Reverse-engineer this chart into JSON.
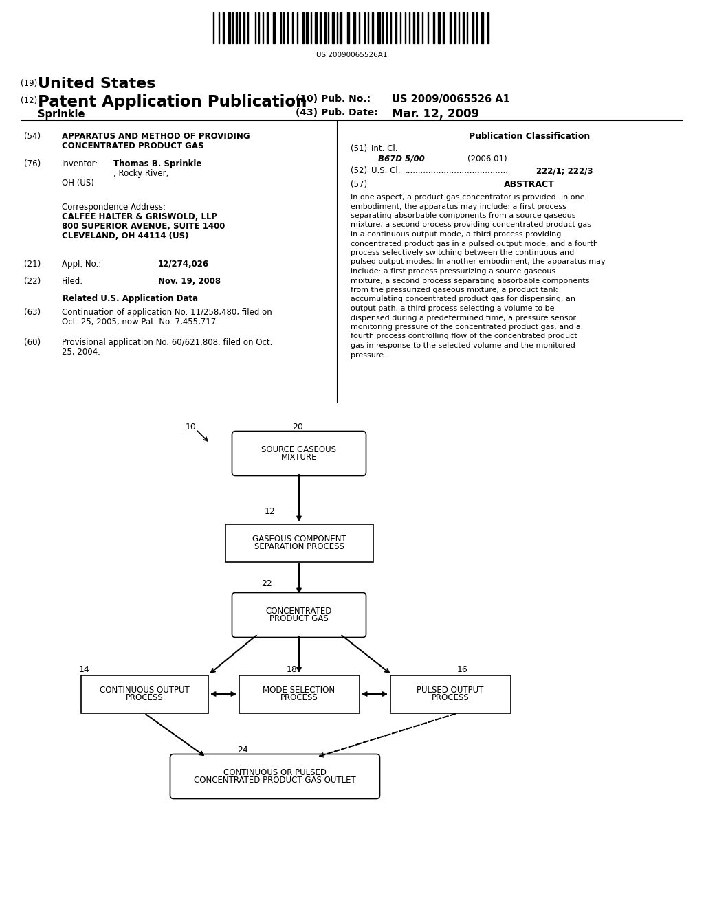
{
  "background_color": "#ffffff",
  "barcode_text": "US 20090065526A1",
  "header": {
    "country_label": "(19)",
    "country": "United States",
    "type_label": "(12)",
    "type": "Patent Application Publication",
    "pub_no_label": "(10) Pub. No.:",
    "pub_no": "US 2009/0065526 A1",
    "date_label": "(43) Pub. Date:",
    "date": "Mar. 12, 2009",
    "inventor_surname": "Sprinkle"
  },
  "left_column": {
    "title_label": "(54)",
    "title_line1": "APPARATUS AND METHOD OF PROVIDING",
    "title_line2": "CONCENTRATED PRODUCT GAS",
    "inventor_label": "(76)",
    "inventor_key": "Inventor:",
    "inventor_value": "Thomas B. Sprinkle, Rocky River,\nOH (US)",
    "corr_header": "Correspondence Address:",
    "corr_line1": "CALFEE HALTER & GRISWOLD, LLP",
    "corr_line2": "800 SUPERIOR AVENUE, SUITE 1400",
    "corr_line3": "CLEVELAND, OH 44114 (US)",
    "appl_label": "(21)",
    "appl_key": "Appl. No.:",
    "appl_value": "12/274,026",
    "filed_label": "(22)",
    "filed_key": "Filed:",
    "filed_value": "Nov. 19, 2008",
    "related_header": "Related U.S. Application Data",
    "cont_label": "(63)",
    "cont_text": "Continuation of application No. 11/258,480, filed on\nOct. 25, 2005, now Pat. No. 7,455,717.",
    "prov_label": "(60)",
    "prov_text": "Provisional application No. 60/621,808, filed on Oct.\n25, 2004."
  },
  "right_column": {
    "pub_class_header": "Publication Classification",
    "int_cl_label": "(51)",
    "int_cl_key": "Int. Cl.",
    "int_cl_code": "B67D 5/00",
    "int_cl_year": "(2006.01)",
    "us_cl_label": "(52)",
    "us_cl_key": "U.S. Cl.",
    "us_cl_dots": "........................................",
    "us_cl_value": "222/1; 222/3",
    "abstract_label": "(57)",
    "abstract_header": "ABSTRACT",
    "abstract_text": "In one aspect, a product gas concentrator is provided. In one embodiment, the apparatus may include: a first process separating absorbable components from a source gaseous mixture, a second process providing concentrated product gas in a continuous output mode, a third process providing concentrated product gas in a pulsed output mode, and a fourth process selectively switching between the continuous and pulsed output modes. In another embodiment, the apparatus may include: a first process pressurizing a source gaseous mixture, a second process separating absorbable components from the pressurized gaseous mixture, a product tank accumulating concentrated product gas for dispensing, an output path, a third process selecting a volume to be dispensed during a predetermined time, a pressure sensor monitoring pressure of the concentrated product gas, and a fourth process controlling flow of the concentrated product gas in response to the selected volume and the monitored pressure."
  },
  "diagram": {
    "label_10": "10",
    "label_20": "20",
    "label_12": "12",
    "label_22": "22",
    "label_14": "14",
    "label_18": "18",
    "label_16": "16",
    "label_24": "24",
    "node_source": "SOURCE GASEOUS\nMIXTURE",
    "node_separation": "GASEOUS COMPONENT\nSEPARATION PROCESS",
    "node_concentrated": "CONCENTRATED\nPRODUCT GAS",
    "node_continuous": "CONTINUOUS OUTPUT\nPROCESS",
    "node_mode": "MODE SELECTION\nPROCESS",
    "node_pulsed": "PULSED OUTPUT\nPROCESS",
    "node_outlet": "CONTINUOUS OR PULSED\nCONCENTRATED PRODUCT GAS OUTLET"
  }
}
